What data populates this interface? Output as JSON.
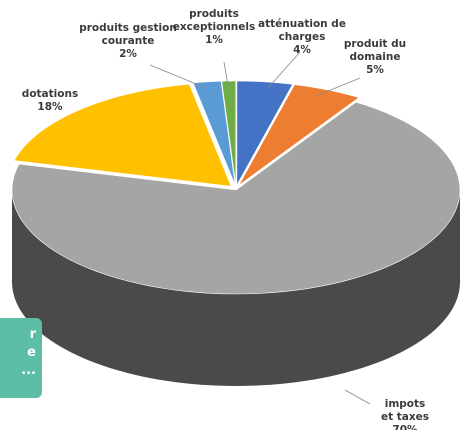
{
  "chart_data": {
    "type": "pie",
    "categories": [
      "atténuation de\ncharges",
      "produit du\ndomaine",
      "impots et taxes",
      "dotations",
      "produits gestion\ncourante",
      "produits\nexceptionnels"
    ],
    "values": [
      4,
      5,
      70,
      18,
      2,
      1
    ],
    "value_labels": [
      "4%",
      "5%",
      "70%",
      "18%",
      "2%",
      "1%"
    ],
    "colors": [
      "#4472c4",
      "#ed7d31",
      "#a5a5a5",
      "#ffc000",
      "#5b9bd5",
      "#70ad47"
    ]
  },
  "overlay": {
    "lines": [
      "r",
      "e",
      "..."
    ]
  }
}
